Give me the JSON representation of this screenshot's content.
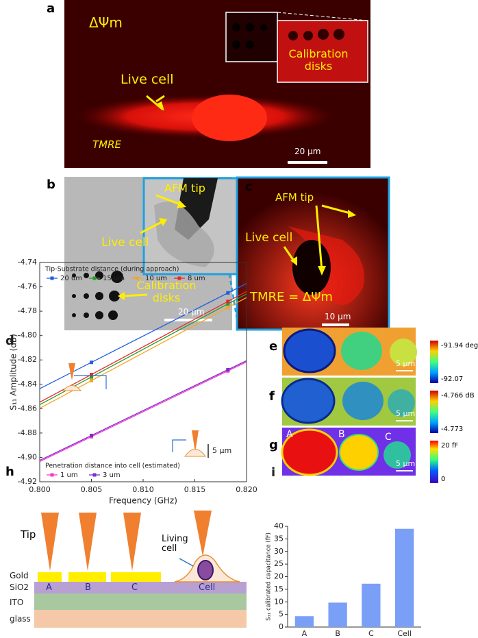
{
  "panels": {
    "a": {
      "label": "a",
      "potential": "ΔΨm",
      "cell": "Live cell",
      "dye": "TMRE",
      "inset": "Calibration disks",
      "scale": "20 μm"
    },
    "b": {
      "label": "b",
      "tip": "AFM tip",
      "cell": "Live cell",
      "disks": "Calibration disks",
      "scale": "20 μm"
    },
    "c": {
      "label": "c",
      "tip": "AFM tip",
      "cell": "Live cell",
      "dye": "TMRE = ΔΨm",
      "scale": "10 μm"
    },
    "e": {
      "label": "e",
      "max": "-91.94 deg",
      "min": "-92.07",
      "scale": "5 μm"
    },
    "f": {
      "label": "f",
      "max": "-4.766 dB",
      "min": "-4.773",
      "scale": "5 μm"
    },
    "g": {
      "label": "g",
      "disks": [
        "A",
        "B",
        "C"
      ],
      "max": "20 fF",
      "min": "0",
      "scale": "5 μm"
    },
    "h": {
      "label": "h",
      "tip": "Tip",
      "cell": "Living cell",
      "layers": [
        "Gold",
        "SiO2",
        "ITO",
        "glass"
      ],
      "sites": [
        "A",
        "B",
        "C",
        "Cell"
      ]
    }
  },
  "chart_data": [
    {
      "type": "line",
      "panel_label": "d",
      "x_label": "Frequency (GHz)",
      "y_label": "S₁₁ Amplitude (dB)",
      "annotation": "5 μm",
      "x": [
        0.805,
        0.8182
      ],
      "series_groups": [
        {
          "title": "Tip-Substrate distance (during approach)",
          "series": [
            {
              "name": "20 um",
              "color": "#1f5fe0",
              "values": [
                -4.822,
                -4.765
              ]
            },
            {
              "name": "15 um",
              "color": "#2a9a2a",
              "values": [
                -4.834,
                -4.774
              ]
            },
            {
              "name": "10 um",
              "color": "#f5a623",
              "values": [
                -4.837,
                -4.777
              ]
            },
            {
              "name": "8 um",
              "color": "#e8262b",
              "values": [
                -4.832,
                -4.772
              ]
            }
          ]
        },
        {
          "title": "Penetration distance into cell (estimated)",
          "series": [
            {
              "name": "1 um",
              "color": "#ff33cc",
              "values": [
                -4.883,
                -4.829
              ]
            },
            {
              "name": "3 um",
              "color": "#7a2fd0",
              "values": [
                -4.882,
                -4.828
              ]
            }
          ]
        }
      ],
      "xlim": [
        0.8,
        0.82
      ],
      "xticks": [
        {
          "value": 0.8,
          "label": "0.800"
        },
        0.805,
        {
          "value": 0.81,
          "label": "0.810"
        },
        0.815,
        {
          "value": 0.82,
          "label": "0.820"
        }
      ],
      "ylim": [
        -4.92,
        -4.74
      ],
      "yticks": [
        -4.74,
        -4.76,
        -4.78,
        {
          "value": -4.8,
          "label": "-4.80"
        },
        -4.82,
        -4.84,
        -4.86,
        -4.88,
        {
          "value": -4.9,
          "label": "-4.90"
        },
        -4.92
      ]
    },
    {
      "type": "bar",
      "panel_label": "i",
      "y_label": "S₁₁ calibrated capacitance (fF)",
      "categories": [
        "A",
        "B",
        "C",
        "Cell"
      ],
      "values": [
        4.3,
        9.7,
        17.2,
        39
      ],
      "color": "#7a9ff7",
      "ylim": [
        0,
        40
      ],
      "yticks": [
        0,
        5,
        10,
        15,
        20,
        25,
        30,
        35,
        40
      ]
    }
  ]
}
